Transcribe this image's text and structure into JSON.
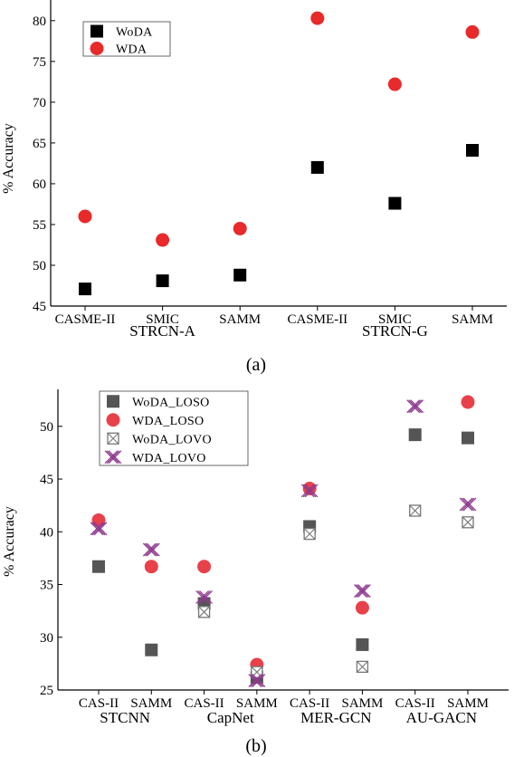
{
  "caption_a": "(a)",
  "caption_b": "(b)",
  "chart_data": [
    {
      "type": "scatter",
      "ylabel": "% Accuracy",
      "ylim": [
        45,
        82
      ],
      "yticks": [
        45,
        50,
        55,
        60,
        65,
        70,
        75,
        80
      ],
      "categories": [
        "CASME-II",
        "SMIC",
        "SAMM",
        "CASME-II",
        "SMIC",
        "SAMM"
      ],
      "groups": [
        {
          "label": "STRCN-A",
          "span": [
            0,
            2
          ]
        },
        {
          "label": "STRCN-G",
          "span": [
            3,
            5
          ]
        }
      ],
      "legend_position": "top-left",
      "series": [
        {
          "name": "WoDA",
          "marker": "square",
          "color": "#000000",
          "values": [
            47.1,
            48.1,
            48.8,
            62.0,
            57.6,
            64.1
          ]
        },
        {
          "name": "WDA",
          "marker": "circle",
          "color": "#e82a2a",
          "values": [
            56.0,
            53.1,
            54.5,
            80.3,
            72.2,
            78.6
          ]
        }
      ]
    },
    {
      "type": "scatter",
      "ylabel": "% Accuracy",
      "ylim": [
        25,
        52.5
      ],
      "yticks": [
        25,
        30,
        35,
        40,
        45,
        50
      ],
      "categories": [
        "CAS-II",
        "SAMM",
        "CAS-II",
        "SAMM",
        "CAS-II",
        "SAMM",
        "CAS-II",
        "SAMM"
      ],
      "groups": [
        {
          "label": "STCNN",
          "span": [
            0,
            1
          ]
        },
        {
          "label": "CapNet",
          "span": [
            2,
            3
          ]
        },
        {
          "label": "MER-GCN",
          "span": [
            4,
            5
          ]
        },
        {
          "label": "AU-GACN",
          "span": [
            6,
            7
          ]
        }
      ],
      "legend_position": "top-left",
      "series": [
        {
          "name": "WoDA_LOSO",
          "marker": "square",
          "color": "#555555",
          "values": [
            36.7,
            28.8,
            33.2,
            26.2,
            40.5,
            29.3,
            49.2,
            48.9
          ]
        },
        {
          "name": "WDA_LOSO",
          "marker": "circle",
          "color": "#e8414a",
          "values": [
            41.1,
            36.7,
            36.7,
            27.4,
            44.1,
            32.8,
            null,
            52.3
          ]
        },
        {
          "name": "WoDA_LOVO",
          "marker": "boxed-x",
          "color": "#777777",
          "values": [
            null,
            null,
            32.4,
            26.7,
            39.8,
            27.2,
            42.0,
            40.9
          ]
        },
        {
          "name": "WDA_LOVO",
          "marker": "x-cross",
          "color": "#8e3a8e",
          "values": [
            40.3,
            38.3,
            33.8,
            25.9,
            43.9,
            34.4,
            51.9,
            42.6
          ]
        }
      ]
    }
  ]
}
